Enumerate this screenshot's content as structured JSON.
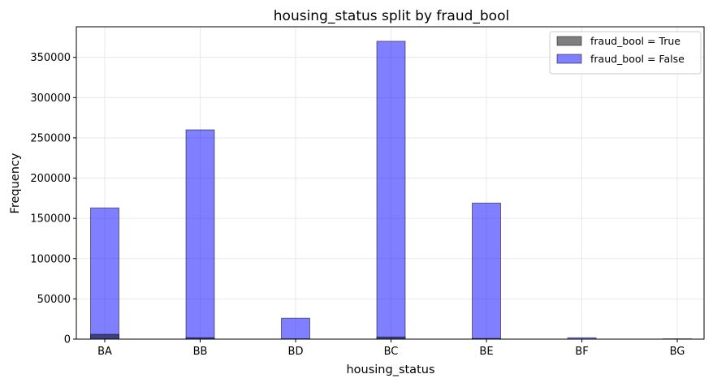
{
  "chart_data": {
    "type": "bar",
    "title": "housing_status split by fraud_bool",
    "xlabel": "housing_status",
    "ylabel": "Frequency",
    "categories": [
      "BA",
      "BB",
      "BD",
      "BC",
      "BE",
      "BF",
      "BG"
    ],
    "ylim": [
      0,
      388000
    ],
    "yticks": [
      0,
      50000,
      100000,
      150000,
      200000,
      250000,
      300000,
      350000
    ],
    "ytick_labels": [
      "0",
      "50000",
      "100000",
      "150000",
      "200000",
      "250000",
      "300000",
      "350000"
    ],
    "grid": true,
    "legend_position": "top-right",
    "series": [
      {
        "name": "fraud_bool = True",
        "color": "#000000",
        "values": [
          6000,
          1700,
          400,
          2600,
          800,
          50,
          10
        ]
      },
      {
        "name": "fraud_bool = False",
        "color": "#0000ff",
        "values": [
          163000,
          260000,
          26000,
          370000,
          169000,
          1700,
          400
        ]
      }
    ]
  }
}
